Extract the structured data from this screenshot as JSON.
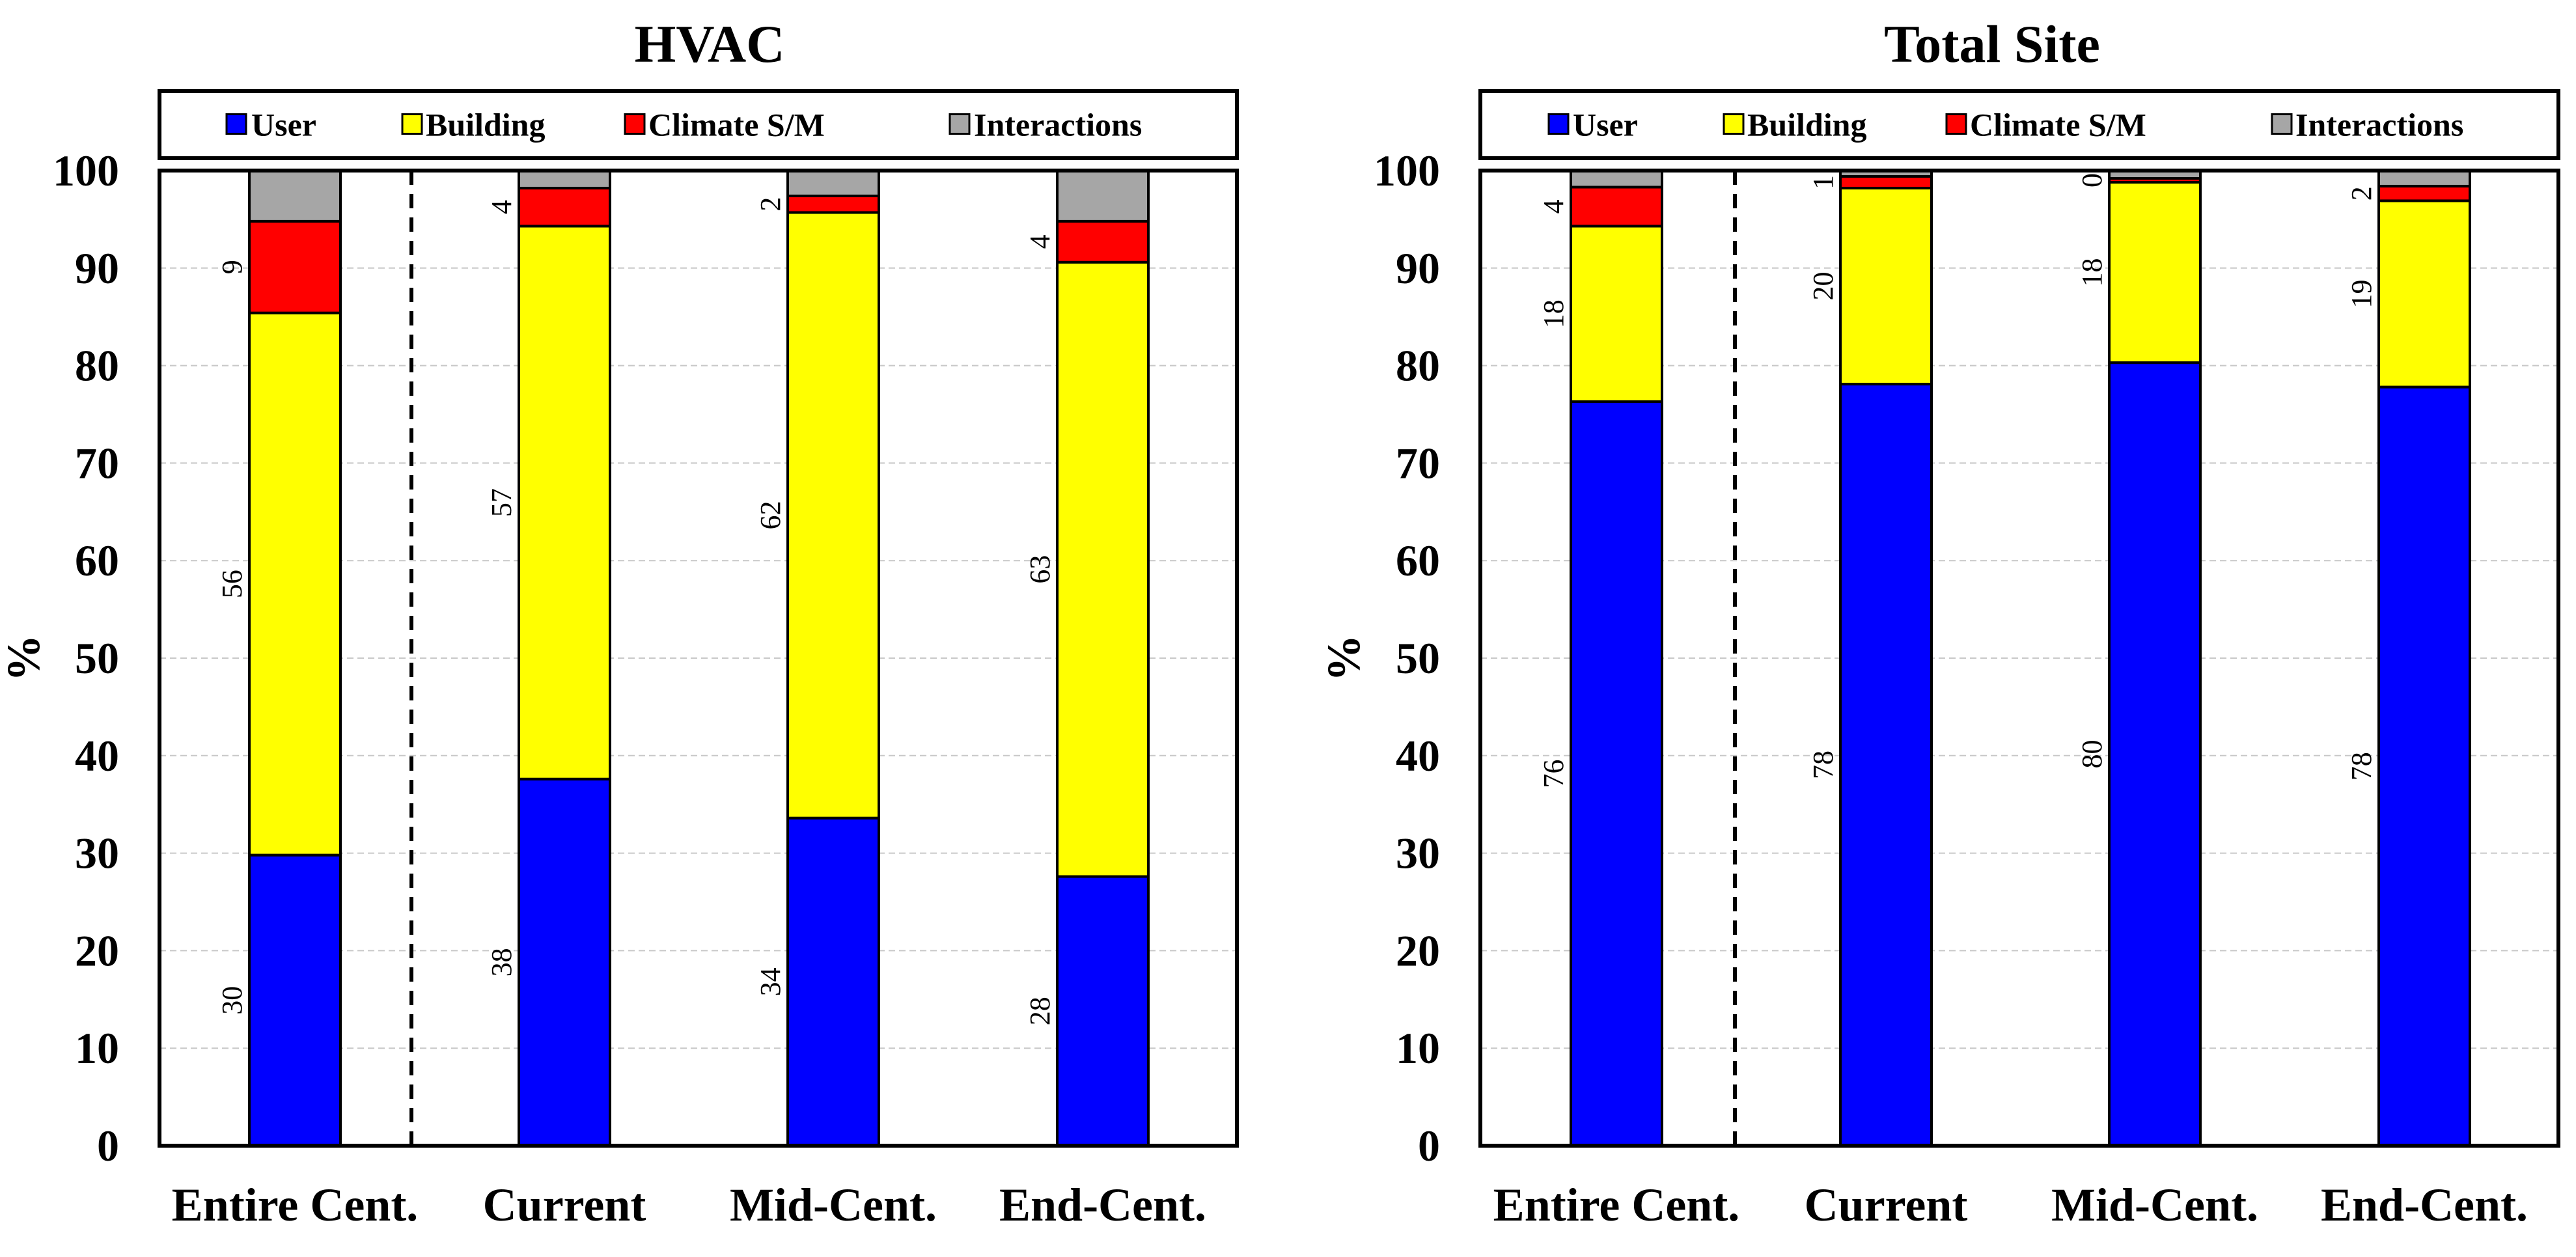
{
  "chart_data": [
    {
      "type": "bar",
      "stacked": true,
      "title": "HVAC",
      "ylabel": "%",
      "xlabel": "",
      "ylim": [
        0,
        100
      ],
      "yticks": [
        0,
        10,
        20,
        30,
        40,
        50,
        60,
        70,
        80,
        90,
        100
      ],
      "grid": true,
      "legend_position": "top",
      "categories": [
        "Entire Cent.",
        "Current",
        "Mid-Cent.",
        "End-Cent."
      ],
      "series": [
        {
          "name": "User",
          "color": "#0000ff",
          "values": [
            29.8,
            37.6,
            33.6,
            27.6
          ],
          "labels": [
            "30",
            "38",
            "34",
            "28"
          ]
        },
        {
          "name": "Building",
          "color": "#ffff00",
          "values": [
            55.6,
            56.7,
            62.1,
            63.0
          ],
          "labels": [
            "56",
            "57",
            "62",
            "63"
          ]
        },
        {
          "name": "Climate S/M",
          "color": "#ff0000",
          "values": [
            9.4,
            3.9,
            1.7,
            4.2
          ],
          "labels": [
            "9",
            "4",
            "2",
            "4"
          ]
        },
        {
          "name": "Interactions",
          "color": "#a6a6a6",
          "values": [
            5.2,
            1.8,
            2.6,
            5.2
          ],
          "labels": [
            "",
            "",
            "",
            ""
          ]
        }
      ]
    },
    {
      "type": "bar",
      "stacked": true,
      "title": "Total Site",
      "ylabel": "%",
      "xlabel": "",
      "ylim": [
        0,
        100
      ],
      "yticks": [
        0,
        10,
        20,
        30,
        40,
        50,
        60,
        70,
        80,
        90,
        100
      ],
      "grid": true,
      "legend_position": "top",
      "categories": [
        "Entire Cent.",
        "Current",
        "Mid-Cent.",
        "End-Cent."
      ],
      "series": [
        {
          "name": "User",
          "color": "#0000ff",
          "values": [
            76.3,
            78.1,
            80.3,
            77.8
          ],
          "labels": [
            "76",
            "78",
            "80",
            "78"
          ]
        },
        {
          "name": "Building",
          "color": "#ffff00",
          "values": [
            18.0,
            20.1,
            18.5,
            19.1
          ],
          "labels": [
            "18",
            "20",
            "18",
            "19"
          ]
        },
        {
          "name": "Climate S/M",
          "color": "#ff0000",
          "values": [
            4.0,
            1.2,
            0.4,
            1.5
          ],
          "labels": [
            "4",
            "1",
            "0",
            "2"
          ]
        },
        {
          "name": "Interactions",
          "color": "#a6a6a6",
          "values": [
            1.7,
            0.6,
            0.8,
            1.6
          ],
          "labels": [
            "",
            "",
            "",
            ""
          ]
        }
      ]
    }
  ]
}
